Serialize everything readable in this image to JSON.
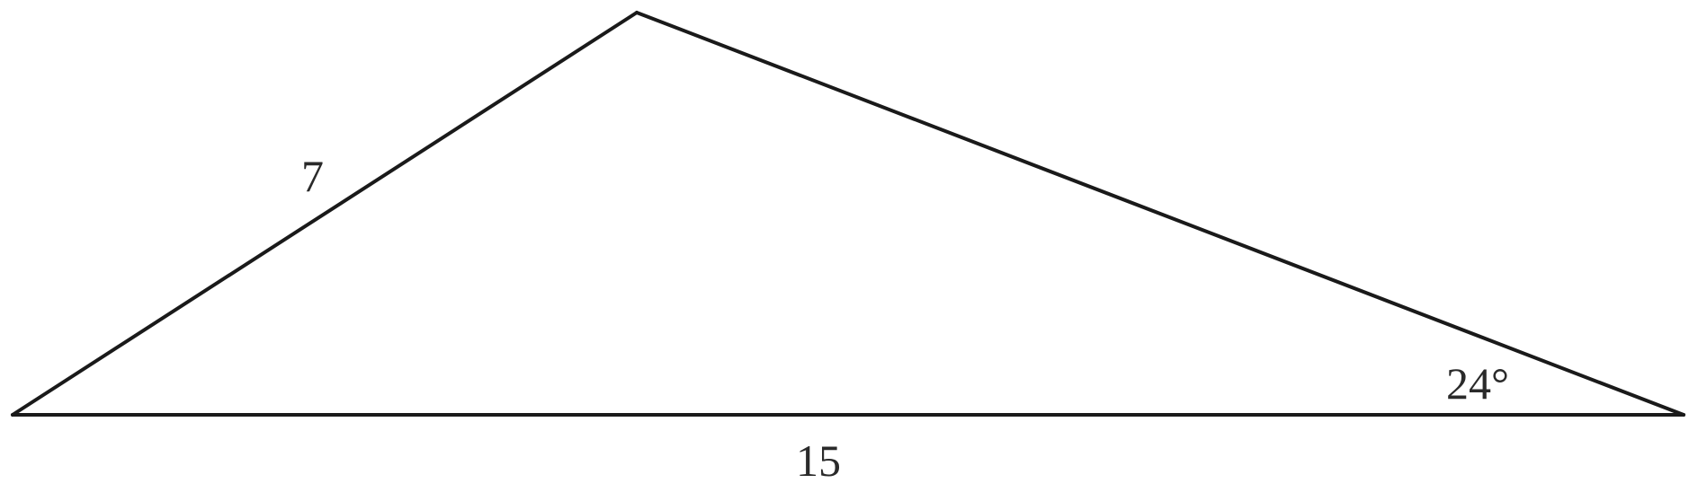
{
  "diagram": {
    "side_left": "7",
    "side_bottom": "15",
    "angle_right": "24°"
  },
  "colors": {
    "stroke": "#1a1a1a",
    "text": "#2a2a2a",
    "background": "#ffffff"
  }
}
